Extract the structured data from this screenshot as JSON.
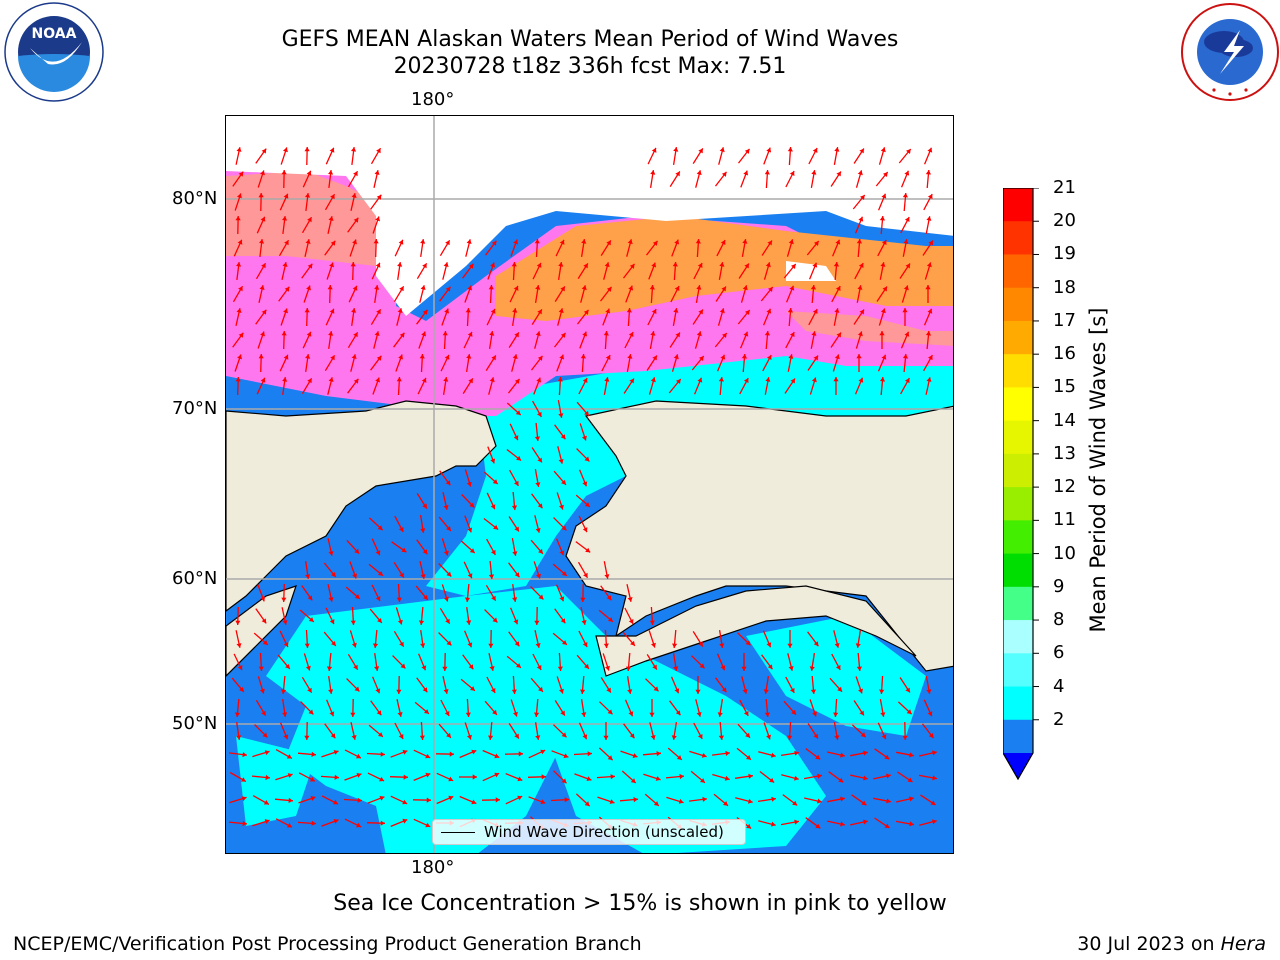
{
  "title": {
    "line1": "GEFS MEAN Alaskan Waters Mean Period of Wind Waves",
    "line2": "20230728 t18z 336h fcst   Max: 7.51"
  },
  "map": {
    "lon_label_top": "180°",
    "lon_label_bottom": "180°",
    "lat_labels": [
      "80°N",
      "70°N",
      "60°N",
      "50°N"
    ],
    "legend_label": "Wind Wave Direction (unscaled)",
    "arrow_color": "#ff0000",
    "land_color": "#efecdc",
    "ocean_colors": {
      "2-4": "#1a7ff0",
      "4-6": "#00ffff",
      "ice_low": "#ff66ff",
      "ice_mid": "#ff9999",
      "ice_high": "#ffaa44"
    }
  },
  "colorbar": {
    "label": "Mean Period of Wind Waves [s]",
    "ticks": [
      "21",
      "20",
      "19",
      "18",
      "17",
      "16",
      "15",
      "14",
      "13",
      "12",
      "11",
      "10",
      "9",
      "8",
      "6",
      "4",
      "2"
    ],
    "colors": [
      "#ff0000",
      "#ff3300",
      "#ff6600",
      "#ff8800",
      "#ffaa00",
      "#ffdd00",
      "#ffff00",
      "#e6f500",
      "#ccee00",
      "#99ee00",
      "#44ee00",
      "#00dd00",
      "#44ff88",
      "#aaffff",
      "#55ffff",
      "#00ffff",
      "#1a7ff0"
    ],
    "under_color": "#0000ff"
  },
  "footer": {
    "note": "Sea Ice Concentration > 15% is shown in pink to yellow",
    "credit": "NCEP/EMC/Verification Post Processing Product Generation Branch",
    "date": "30 Jul 2023 on",
    "machine": "Hera"
  },
  "logos": {
    "noaa_text": "NOAA",
    "noaa_ring": "NATIONAL OCEANIC AND ATMOSPHERIC ADMINISTRATION · U.S. DEPARTMENT OF COMMERCE",
    "nws_ring": "NATIONAL WEATHER SERVICE"
  }
}
